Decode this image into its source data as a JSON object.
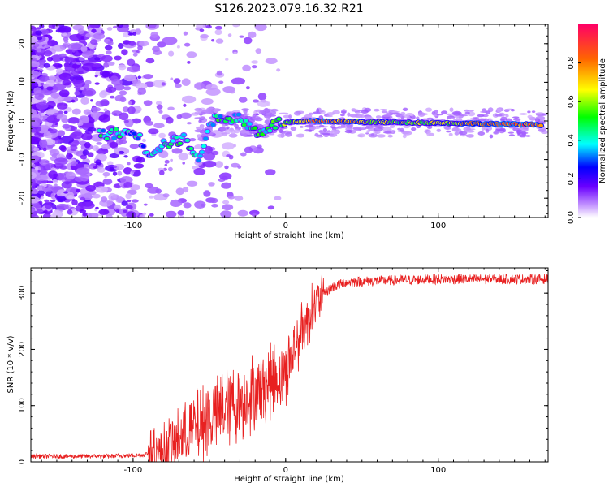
{
  "title": "S126.2023.079.16.32.R21",
  "chart_data": [
    {
      "type": "heatmap",
      "xlabel": "Height of straight line (km)",
      "ylabel": "Frequency (Hz)",
      "xlim": [
        -167,
        172
      ],
      "ylim": [
        -25,
        25
      ],
      "xticks": [
        -100,
        0,
        100
      ],
      "yticks": [
        -20,
        -10,
        0,
        10,
        20
      ],
      "colorbar": {
        "label": "Normalized spectral amplitude",
        "range": [
          0,
          1
        ],
        "ticks": [
          0.0,
          0.2,
          0.4,
          0.6,
          0.8
        ],
        "colors": [
          "#ffffff",
          "#c89cff",
          "#6a00ff",
          "#0000ff",
          "#00ffff",
          "#00ff00",
          "#ffff00",
          "#ff6600",
          "#ff0066"
        ]
      },
      "ridge": [
        {
          "x": -122,
          "y": -3.5,
          "amp": 0.4
        },
        {
          "x": -98,
          "y": -3.0,
          "amp": 0.35
        },
        {
          "x": -90,
          "y": -8.5,
          "amp": 0.35
        },
        {
          "x": -80,
          "y": -6.0,
          "amp": 0.4
        },
        {
          "x": -65,
          "y": -4.5,
          "amp": 0.45
        },
        {
          "x": -57,
          "y": -11.0,
          "amp": 0.35
        },
        {
          "x": -50,
          "y": 0.0,
          "amp": 0.4
        },
        {
          "x": -32,
          "y": 1.0,
          "amp": 0.45
        },
        {
          "x": -18,
          "y": -3.0,
          "amp": 0.45
        },
        {
          "x": -5,
          "y": -0.5,
          "amp": 0.5
        },
        {
          "x": 20,
          "y": 0.0,
          "amp": 0.9
        },
        {
          "x": 60,
          "y": -0.3,
          "amp": 0.6
        },
        {
          "x": 100,
          "y": -0.5,
          "amp": 0.6
        },
        {
          "x": 140,
          "y": -0.8,
          "amp": 0.85
        },
        {
          "x": 168,
          "y": -1.0,
          "amp": 0.8
        }
      ]
    },
    {
      "type": "line",
      "xlabel": "Height of straight line (km)",
      "ylabel": "SNR (10 * v/v)",
      "xlim": [
        -167,
        172
      ],
      "ylim": [
        0,
        345
      ],
      "xticks": [
        -100,
        0,
        100
      ],
      "yticks": [
        0,
        100,
        200,
        300
      ],
      "color": "#e82020",
      "trend": {
        "x": [
          -167,
          -120,
          -95,
          -80,
          -60,
          -40,
          -20,
          0,
          10,
          20,
          30,
          40,
          60,
          100,
          140,
          172
        ],
        "y": [
          10,
          10,
          12,
          20,
          60,
          95,
          125,
          160,
          230,
          285,
          310,
          320,
          322,
          325,
          325,
          325
        ]
      }
    }
  ]
}
